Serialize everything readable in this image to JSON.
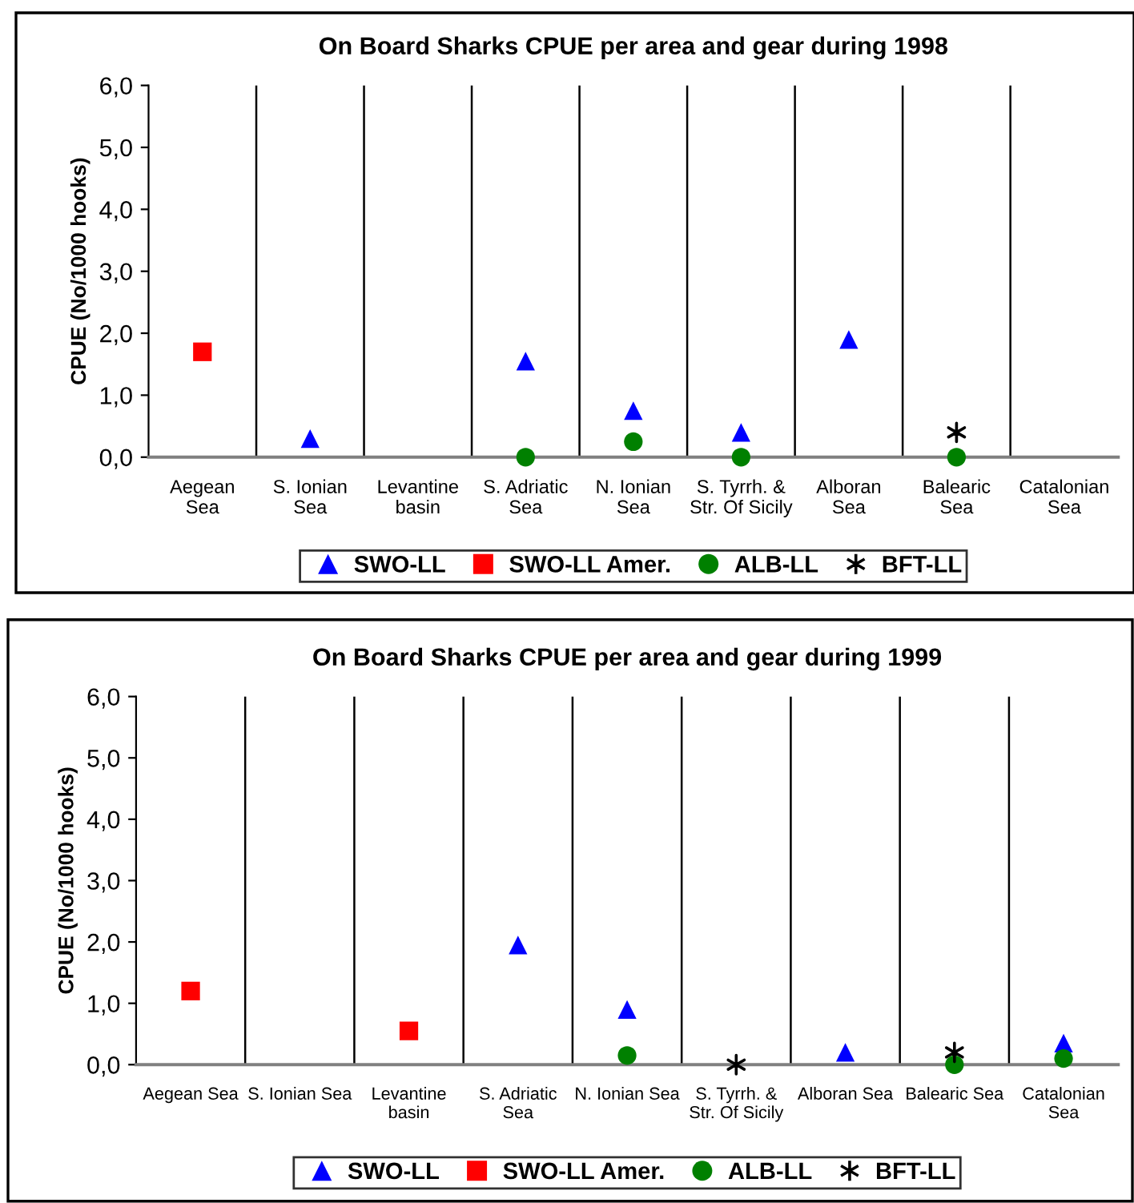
{
  "chart_data": [
    {
      "type": "scatter",
      "title": "On Board Sharks CPUE per area and gear during 1998",
      "ylabel": "CPUE (No/1000 hooks)",
      "categories": [
        "Aegean\nSea",
        "S. Ionian\nSea",
        "Levantine\nbasin",
        "S. Adriatic\nSea",
        "N. Ionian\nSea",
        "S. Tyrrh. &\nStr. Of Sicily",
        "Alboran\nSea",
        "Balearic\nSea",
        "Catalonian\nSea"
      ],
      "series": [
        {
          "name": "SWO-LL",
          "color": "#0000ff",
          "marker": "triangle",
          "values": [
            null,
            0.3,
            null,
            1.55,
            0.75,
            0.4,
            1.9,
            null,
            null
          ]
        },
        {
          "name": "SWO-LL Amer.",
          "color": "#ff0000",
          "marker": "square",
          "values": [
            1.7,
            null,
            null,
            null,
            null,
            null,
            null,
            null,
            null
          ]
        },
        {
          "name": "ALB-LL",
          "color": "#008000",
          "marker": "circle",
          "values": [
            null,
            null,
            null,
            0.0,
            0.25,
            0.0,
            null,
            0.0,
            null
          ]
        },
        {
          "name": "BFT-LL",
          "color": "#000000",
          "marker": "cross",
          "values": [
            null,
            null,
            null,
            null,
            null,
            null,
            null,
            0.4,
            null
          ]
        }
      ],
      "ylim": [
        0,
        6
      ],
      "yticks": [
        {
          "value": 0,
          "label": "0,0"
        },
        {
          "value": 1,
          "label": "1,0"
        },
        {
          "value": 2,
          "label": "2,0"
        },
        {
          "value": 3,
          "label": "3,0"
        },
        {
          "value": 4,
          "label": "4,0"
        },
        {
          "value": 5,
          "label": "5,0"
        },
        {
          "value": 6,
          "label": "6,0"
        }
      ],
      "grid": "x",
      "legend": "bottom"
    },
    {
      "type": "scatter",
      "title": "On Board Sharks CPUE per area and gear during 1999",
      "ylabel": "CPUE (No/1000 hooks)",
      "categories": [
        "Aegean Sea",
        "S. Ionian Sea",
        "Levantine\nbasin",
        "S. Adriatic\nSea",
        "N. Ionian Sea",
        "S. Tyrrh. &\nStr. Of Sicily",
        "Alboran Sea",
        "Balearic Sea",
        "Catalonian\nSea"
      ],
      "series": [
        {
          "name": "SWO-LL",
          "color": "#0000ff",
          "marker": "triangle",
          "values": [
            null,
            null,
            null,
            1.95,
            0.9,
            null,
            0.2,
            null,
            0.35
          ]
        },
        {
          "name": "SWO-LL Amer.",
          "color": "#ff0000",
          "marker": "square",
          "values": [
            1.2,
            null,
            0.55,
            null,
            null,
            null,
            null,
            null,
            null
          ]
        },
        {
          "name": "ALB-LL",
          "color": "#008000",
          "marker": "circle",
          "values": [
            null,
            null,
            null,
            null,
            0.15,
            null,
            null,
            0.0,
            0.1
          ]
        },
        {
          "name": "BFT-LL",
          "color": "#000000",
          "marker": "cross",
          "values": [
            null,
            null,
            null,
            null,
            null,
            0.0,
            null,
            0.2,
            null
          ]
        }
      ],
      "ylim": [
        0,
        6
      ],
      "yticks": [
        {
          "value": 0,
          "label": "0,0"
        },
        {
          "value": 1,
          "label": "1,0"
        },
        {
          "value": 2,
          "label": "2,0"
        },
        {
          "value": 3,
          "label": "3,0"
        },
        {
          "value": 4,
          "label": "4,0"
        },
        {
          "value": 5,
          "label": "5,0"
        },
        {
          "value": 6,
          "label": "6,0"
        }
      ],
      "grid": "x",
      "legend": "bottom"
    }
  ]
}
